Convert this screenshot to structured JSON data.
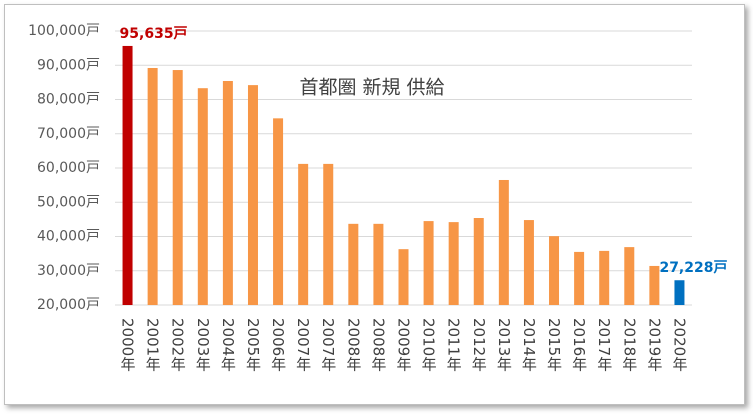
{
  "chart_data": {
    "type": "bar",
    "title": "首都圏 新規 供給",
    "categories": [
      "2000年",
      "2001年",
      "2002年",
      "2003年",
      "2004年",
      "2005年",
      "2006年",
      "2007年",
      "2007年",
      "2008年",
      "2008年",
      "2009年",
      "2010年",
      "2011年",
      "2012年",
      "2013年",
      "2014年",
      "2015年",
      "2016年",
      "2017年",
      "2018年",
      "2019年",
      "2020年"
    ],
    "values": [
      95635,
      89200,
      88600,
      83300,
      85400,
      84200,
      74500,
      61200,
      61200,
      43700,
      43700,
      36300,
      44500,
      44200,
      45400,
      56500,
      44800,
      40100,
      35500,
      35800,
      36900,
      31400,
      27228
    ],
    "value_labels": [
      "95,635戸",
      null,
      null,
      null,
      null,
      null,
      null,
      null,
      null,
      null,
      null,
      null,
      null,
      null,
      null,
      null,
      null,
      null,
      null,
      null,
      null,
      null,
      "27,228戸"
    ],
    "colors": [
      "#c00000",
      "#f79646",
      "#f79646",
      "#f79646",
      "#f79646",
      "#f79646",
      "#f79646",
      "#f79646",
      "#f79646",
      "#f79646",
      "#f79646",
      "#f79646",
      "#f79646",
      "#f79646",
      "#f79646",
      "#f79646",
      "#f79646",
      "#f79646",
      "#f79646",
      "#f79646",
      "#f79646",
      "#f79646",
      "#0070c0"
    ],
    "ylim": [
      20000,
      100000
    ],
    "yticks": [
      {
        "value": 20000,
        "label": "20,000戸"
      },
      {
        "value": 30000,
        "label": "30,000戸"
      },
      {
        "value": 40000,
        "label": "40,000戸"
      },
      {
        "value": 50000,
        "label": "50,000戸"
      },
      {
        "value": 60000,
        "label": "60,000戸"
      },
      {
        "value": 70000,
        "label": "70,000戸"
      },
      {
        "value": 80000,
        "label": "80,000戸"
      },
      {
        "value": 90000,
        "label": "90,000戸"
      },
      {
        "value": 100000,
        "label": "100,000戸"
      }
    ],
    "grid": true
  }
}
